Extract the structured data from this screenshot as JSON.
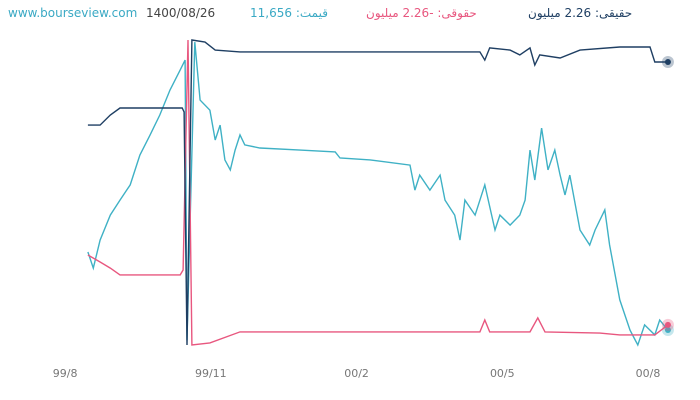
{
  "chart_data": {
    "type": "line",
    "site": "www.bourseview.com",
    "date": "1400/08/26",
    "price_label": "قیمت: 11,656",
    "legal_label": "حقوقی: -2.26 میلیون",
    "individual_label": "حقیقی: 2.26 میلیون",
    "xlim": [
      -1.34,
      13.07
    ],
    "ylim": [
      0,
      100
    ],
    "xticks": [
      {
        "value": 0,
        "label": "99/8"
      },
      {
        "value": 3,
        "label": "99/11"
      },
      {
        "value": 6,
        "label": "00/2"
      },
      {
        "value": 9,
        "label": "00/5"
      },
      {
        "value": 12,
        "label": "00/8"
      }
    ],
    "series": [
      {
        "color": "#3fb1c5",
        "x": [
          0.47,
          0.58,
          0.72,
          0.93,
          1.13,
          1.34,
          1.54,
          1.75,
          1.95,
          2.16,
          2.37,
          2.47,
          2.51,
          2.67,
          2.78,
          2.98,
          3.09,
          3.19,
          3.29,
          3.4,
          3.5,
          3.6,
          3.7,
          4.01,
          4.84,
          5.56,
          5.66,
          6.28,
          7.1,
          7.2,
          7.3,
          7.51,
          7.72,
          7.82,
          8.02,
          8.13,
          8.23,
          8.44,
          8.64,
          8.85,
          8.95,
          9.16,
          9.36,
          9.47,
          9.57,
          9.67,
          9.81,
          9.94,
          10.08,
          10.19,
          10.29,
          10.39,
          10.6,
          10.8,
          10.91,
          11.11,
          11.21,
          11.42,
          11.63,
          11.79,
          11.93,
          12.14,
          12.24,
          12.41
        ],
        "values": [
          30.5,
          25.2,
          34.4,
          42.6,
          47.5,
          52.5,
          62.3,
          68.9,
          75.4,
          83.6,
          90.2,
          93.4,
          1.6,
          99.3,
          80.3,
          77.0,
          67.2,
          72.1,
          60.7,
          57.4,
          63.9,
          68.9,
          65.6,
          64.6,
          63.9,
          63.3,
          61.3,
          60.7,
          59.0,
          50.8,
          55.7,
          50.8,
          55.7,
          47.5,
          42.6,
          34.4,
          47.5,
          42.6,
          52.5,
          37.7,
          42.6,
          39.3,
          42.6,
          47.5,
          63.9,
          54.1,
          71.1,
          57.4,
          63.9,
          55.7,
          49.2,
          55.7,
          37.7,
          32.8,
          37.7,
          44.3,
          32.8,
          14.8,
          4.9,
          0,
          6.6,
          3.3,
          8.2,
          4.9
        ]
      },
      {
        "color": "#e8577f",
        "x": [
          0.47,
          0.72,
          0.93,
          1.13,
          2.37,
          2.43,
          2.53,
          2.61,
          2.98,
          3.6,
          4.84,
          8.54,
          8.64,
          8.74,
          9.57,
          9.73,
          9.88,
          11.01,
          11.42,
          12.14,
          12.41
        ],
        "values": [
          29.5,
          27.2,
          25.2,
          23.0,
          23.0,
          24.6,
          100,
          0,
          0.7,
          4.3,
          4.3,
          4.3,
          8.2,
          4.3,
          4.3,
          8.9,
          4.3,
          3.9,
          3.3,
          3.3,
          6.6
        ]
      },
      {
        "color": "#1f3f63",
        "x": [
          0.47,
          0.72,
          0.93,
          1.13,
          2.41,
          2.45,
          2.51,
          2.61,
          2.88,
          3.09,
          3.6,
          8.54,
          8.64,
          8.74,
          9.16,
          9.36,
          9.57,
          9.67,
          9.77,
          10.19,
          10.6,
          11.42,
          12.04,
          12.14,
          12.41
        ],
        "values": [
          72.1,
          72.1,
          75.4,
          77.7,
          77.7,
          76.4,
          0,
          100,
          99.3,
          96.7,
          96.1,
          96.1,
          93.4,
          97.4,
          96.7,
          95.1,
          97.4,
          91.8,
          95.1,
          94.1,
          96.7,
          97.7,
          97.7,
          92.8,
          92.8
        ]
      }
    ]
  }
}
